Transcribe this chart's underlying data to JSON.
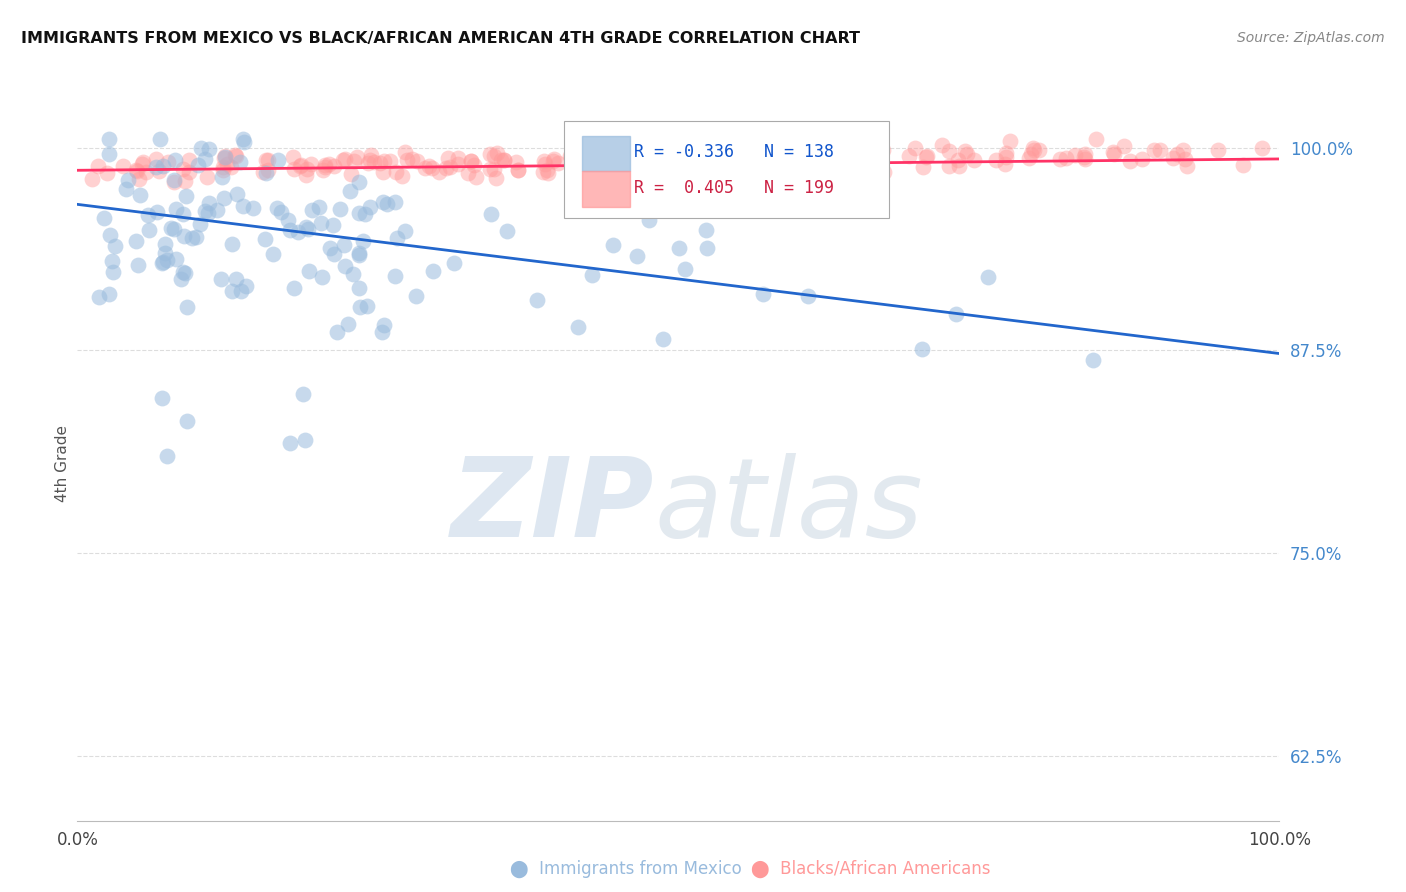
{
  "title": "IMMIGRANTS FROM MEXICO VS BLACK/AFRICAN AMERICAN 4TH GRADE CORRELATION CHART",
  "source": "Source: ZipAtlas.com",
  "ylabel": "4th Grade",
  "y_tick_labels": [
    "62.5%",
    "75.0%",
    "87.5%",
    "100.0%"
  ],
  "y_tick_values": [
    0.625,
    0.75,
    0.875,
    1.0
  ],
  "xlim": [
    0.0,
    1.0
  ],
  "ylim": [
    0.585,
    1.025
  ],
  "legend_blue_r": "-0.336",
  "legend_blue_n": "138",
  "legend_pink_r": "0.405",
  "legend_pink_n": "199",
  "blue_color": "#99BBDD",
  "pink_color": "#FF9999",
  "blue_edge_color": "#7799CC",
  "pink_edge_color": "#FF7777",
  "blue_line_color": "#2266CC",
  "pink_line_color": "#FF3366",
  "background_color": "#FFFFFF",
  "blue_line_x0": 0.0,
  "blue_line_y0": 0.965,
  "blue_line_x1": 1.0,
  "blue_line_y1": 0.873,
  "pink_line_x0": 0.0,
  "pink_line_y0": 0.986,
  "pink_line_x1": 1.0,
  "pink_line_y1": 0.993
}
